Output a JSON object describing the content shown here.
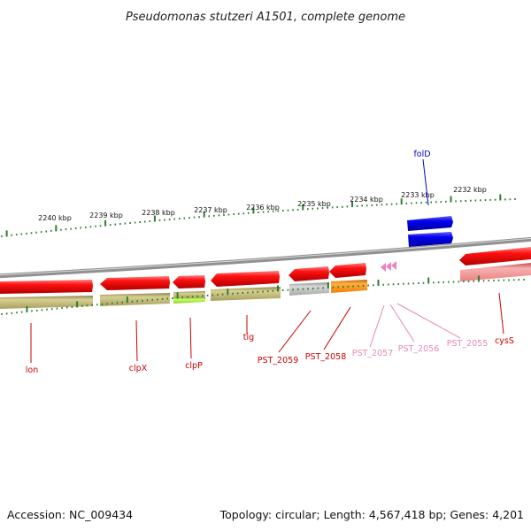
{
  "title": "Pseudomonas stutzeri A1501, complete genome",
  "footer": {
    "accession": "Accession: NC_009434",
    "summary": "Topology: circular; Length: 4,567,418 bp; Genes: 4,201"
  },
  "scale": {
    "ticks": [
      {
        "label": "2240 kbp"
      },
      {
        "label": "2239 kbp"
      },
      {
        "label": "2238 kbp"
      },
      {
        "label": "2237 kbp"
      },
      {
        "label": "2236 kbp"
      },
      {
        "label": "2235 kbp"
      },
      {
        "label": "2234 kbp"
      },
      {
        "label": "2233 kbp"
      },
      {
        "label": "2232 kbp"
      }
    ]
  },
  "colors": {
    "gene_forward": "#0000ee",
    "gene_reverse": "#ff0000",
    "gene_label_red": "#cc0000",
    "gene_label_pink": "#e888b8",
    "gene_label_blue": "#0000cc",
    "category_olive": "#b8b070",
    "category_green": "#a8e040",
    "category_grey": "#b8b8b8",
    "category_orange": "#ff9010",
    "tick_green": "#2e7d32",
    "backbone": "#8a8a8a"
  },
  "genes": [
    {
      "label": "lon",
      "strand": "reverse"
    },
    {
      "label": "clpX",
      "strand": "reverse"
    },
    {
      "label": "clpP",
      "strand": "reverse"
    },
    {
      "label": "tig",
      "strand": "reverse"
    },
    {
      "label": "PST_2059",
      "strand": "reverse"
    },
    {
      "label": "PST_2058",
      "strand": "reverse"
    },
    {
      "label": "PST_2057",
      "strand": "reverse",
      "type": "tRNA"
    },
    {
      "label": "PST_2056",
      "strand": "reverse",
      "type": "tRNA"
    },
    {
      "label": "PST_2055",
      "strand": "reverse",
      "type": "tRNA"
    },
    {
      "label": "cysS",
      "strand": "reverse"
    },
    {
      "label": "folD",
      "strand": "forward"
    }
  ]
}
